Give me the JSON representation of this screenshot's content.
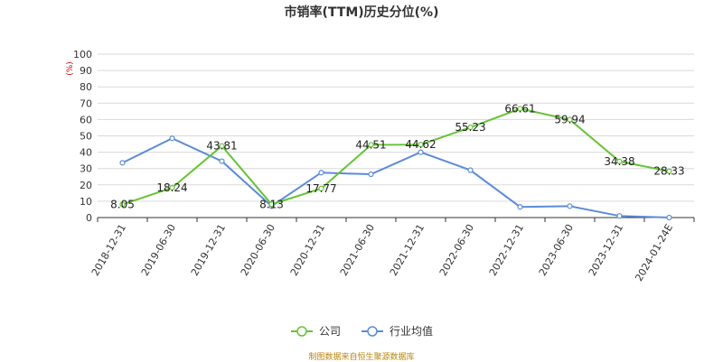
{
  "chart_data": {
    "type": "line",
    "title": "市销率(TTM)历史分位(%)",
    "ylabel": "(%)",
    "ylim": [
      0,
      100
    ],
    "yticks": [
      0,
      10,
      20,
      30,
      40,
      50,
      60,
      70,
      80,
      90,
      100
    ],
    "grid": true,
    "legend_position": "bottom",
    "categories": [
      "2018-12-31",
      "2019-06-30",
      "2019-12-31",
      "2020-06-30",
      "2020-12-31",
      "2021-06-30",
      "2021-12-31",
      "2022-06-30",
      "2022-12-31",
      "2023-06-30",
      "2023-12-31",
      "2024-01-24E"
    ],
    "series": [
      {
        "name": "公司",
        "color": "#66c337",
        "values": [
          8.05,
          18.24,
          43.81,
          8.13,
          17.77,
          44.51,
          44.62,
          55.23,
          66.61,
          59.94,
          34.38,
          28.33
        ],
        "labels": [
          "8.05",
          "18.24",
          "43.81",
          "8.13",
          "17.77",
          "44.51",
          "44.62",
          "55.23",
          "66.61",
          "59.94",
          "34.38",
          "28.33"
        ]
      },
      {
        "name": "行业均值",
        "color": "#5b8bd8",
        "values": [
          33.5,
          48.5,
          34.5,
          7.0,
          27.5,
          26.5,
          40.0,
          29.0,
          6.5,
          7.0,
          1.0,
          0.0
        ]
      }
    ]
  },
  "source_text": "制图数据来自恒生聚源数据库"
}
